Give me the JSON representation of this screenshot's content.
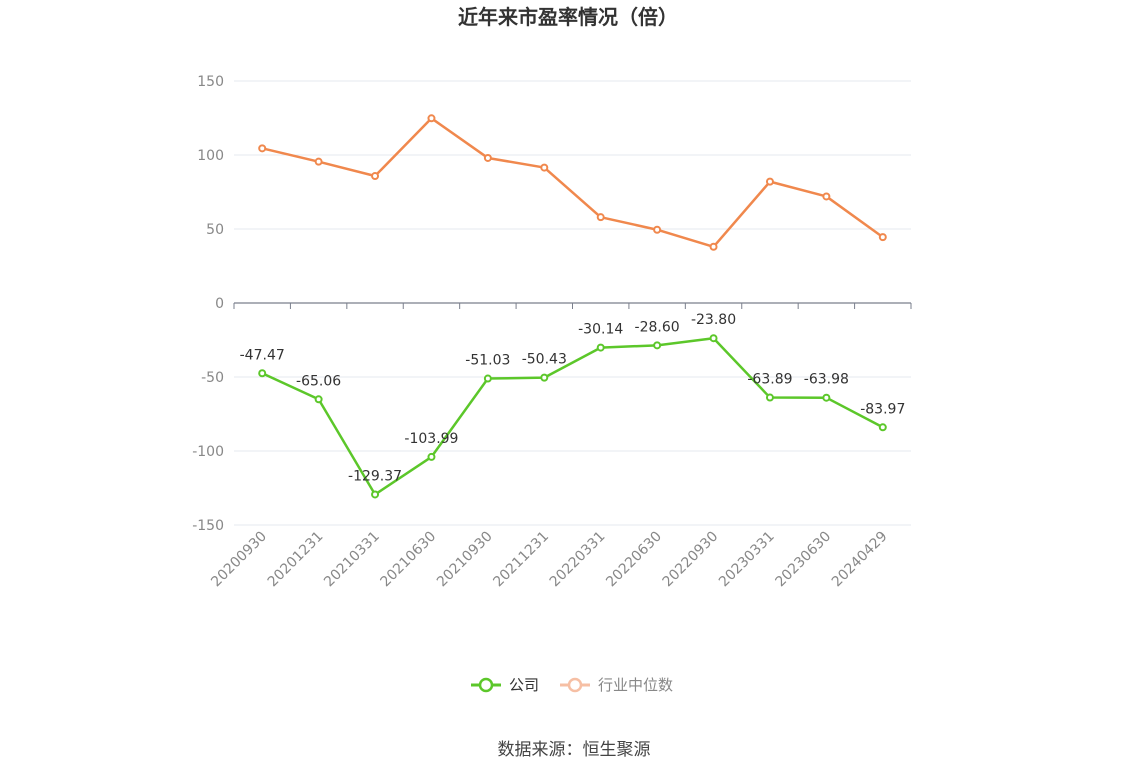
{
  "chart_data": {
    "type": "line",
    "title": "近年来市盈率情况（倍）",
    "source": "数据来源：恒生聚源",
    "x": [
      "20200930",
      "20201231",
      "20210331",
      "20210630",
      "20210930",
      "20211231",
      "20220331",
      "20220630",
      "20220930",
      "20230331",
      "20230630",
      "20240429"
    ],
    "series": [
      {
        "name": "公司",
        "color": "#5cc72a",
        "values": [
          -47.47,
          -65.06,
          -129.37,
          -103.99,
          -51.03,
          -50.43,
          -30.14,
          -28.6,
          -23.8,
          -63.89,
          -63.98,
          -83.97
        ],
        "labels": [
          "-47.47",
          "-65.06",
          "-129.37",
          "-103.99",
          "-51.03",
          "-50.43",
          "-30.14",
          "-28.60",
          "-23.80",
          "-63.89",
          "-63.98",
          "-83.97"
        ]
      },
      {
        "name": "行业中位数",
        "color": "#f0884d",
        "values": [
          104.5,
          95.5,
          85.8,
          124.8,
          98.0,
          91.5,
          58.0,
          49.5,
          38.0,
          82.0,
          72.0,
          44.5
        ]
      }
    ],
    "yticks": [
      "150",
      "100",
      "50",
      "0",
      "-50",
      "-100",
      "-150"
    ],
    "ylim": [
      -150,
      150
    ],
    "grid": true,
    "legend": "bottom-center"
  }
}
